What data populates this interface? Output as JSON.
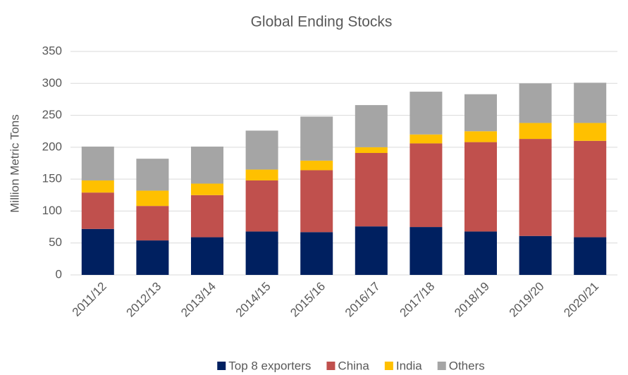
{
  "chart_data": {
    "type": "stacked_bar",
    "title": "Global Ending Stocks",
    "y_label": "Million Metric Tons",
    "categories": [
      "2011/12",
      "2012/13",
      "2013/14",
      "2014/15",
      "2015/16",
      "2016/17",
      "2017/18",
      "2018/19",
      "2019/20",
      "2020/21"
    ],
    "series": [
      {
        "name": "Top 8 exporters",
        "color": "#002060",
        "values": [
          72,
          54,
          59,
          68,
          67,
          76,
          75,
          68,
          61,
          59
        ]
      },
      {
        "name": "China",
        "color": "#c0504d",
        "values": [
          57,
          54,
          66,
          80,
          97,
          115,
          131,
          140,
          152,
          151
        ]
      },
      {
        "name": "India",
        "color": "#ffc000",
        "values": [
          19,
          24,
          18,
          17,
          15,
          9,
          14,
          17,
          25,
          28
        ]
      },
      {
        "name": "Others",
        "color": "#a5a5a5",
        "values": [
          53,
          50,
          58,
          61,
          69,
          66,
          67,
          58,
          62,
          63
        ]
      }
    ],
    "ylim": [
      0,
      350
    ],
    "yticks": [
      0,
      50,
      100,
      150,
      200,
      250,
      300,
      350
    ],
    "grid": true,
    "legend": "bottom"
  }
}
